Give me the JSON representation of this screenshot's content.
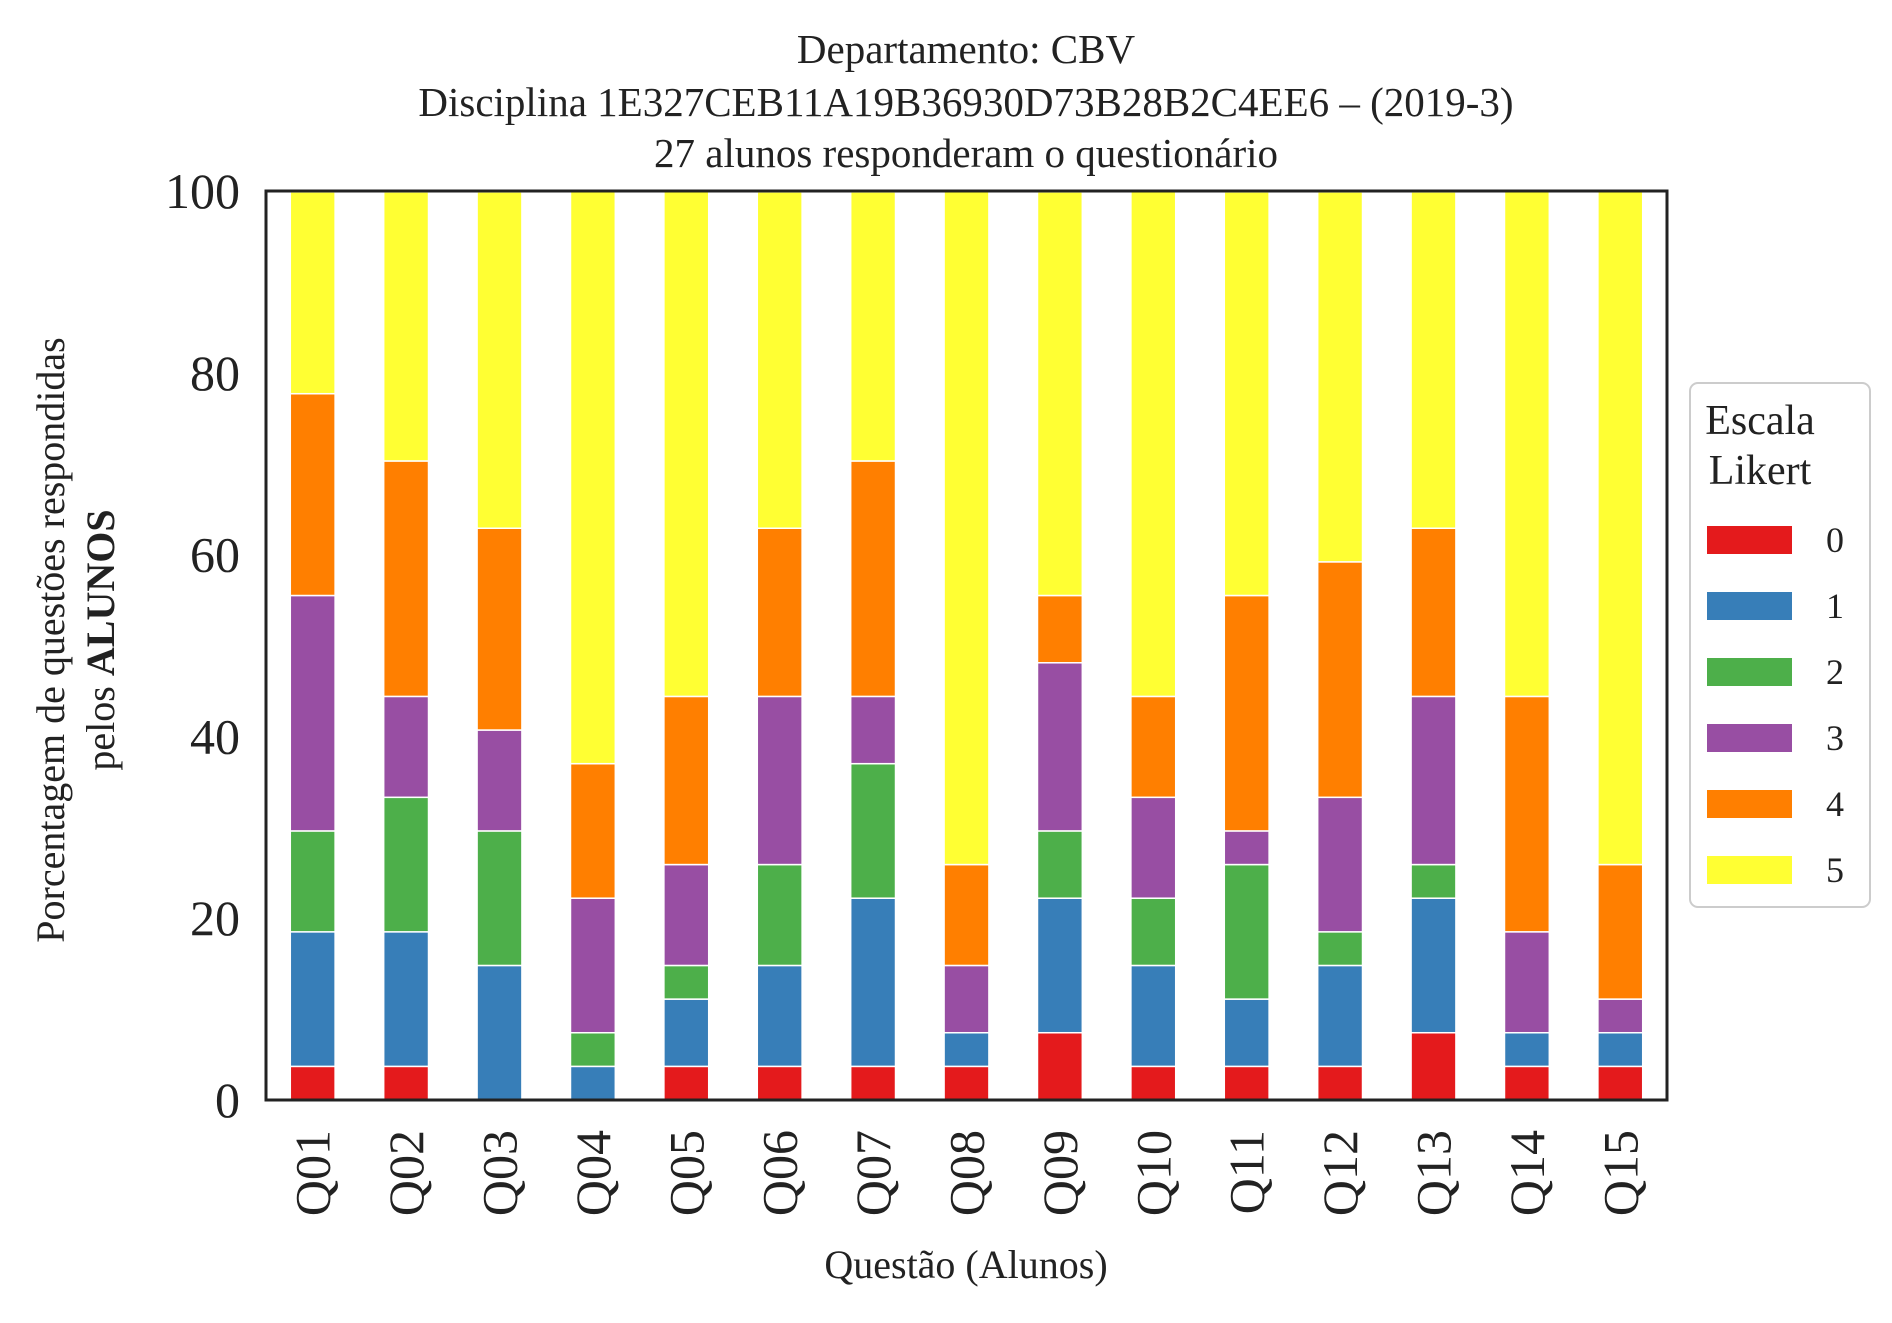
{
  "chart_data": {
    "type": "bar",
    "stacked": true,
    "title": [
      "Departamento: CBV",
      "Disciplina 1E327CEB11A19B36930D73B28B2C4EE6 – (2019-3)",
      "27 alunos responderam o questionário"
    ],
    "xlabel": "Questão (Alunos)",
    "ylabel": [
      "Porcentagem de questões respondidas",
      "pelos ",
      "ALUNOS"
    ],
    "ylim": [
      0,
      100
    ],
    "yticks": [
      0,
      20,
      40,
      60,
      80,
      100
    ],
    "categories": [
      "Q01",
      "Q02",
      "Q03",
      "Q04",
      "Q05",
      "Q06",
      "Q07",
      "Q08",
      "Q09",
      "Q10",
      "Q11",
      "Q12",
      "Q13",
      "Q14",
      "Q15"
    ],
    "legend": {
      "title": [
        "Escala",
        "Likert"
      ],
      "placement": "right-outside"
    },
    "grid": false,
    "series": [
      {
        "name": "0",
        "color": "#e41a1c",
        "values": [
          3.7,
          3.7,
          0,
          0,
          3.7,
          3.7,
          3.7,
          3.7,
          7.4,
          3.7,
          3.7,
          3.7,
          7.4,
          3.7,
          3.7
        ]
      },
      {
        "name": "1",
        "color": "#377eb8",
        "values": [
          14.8,
          14.8,
          14.8,
          3.7,
          7.4,
          11.1,
          18.5,
          3.7,
          14.8,
          11.1,
          7.4,
          11.1,
          14.8,
          3.7,
          3.7
        ]
      },
      {
        "name": "2",
        "color": "#4daf4a",
        "values": [
          11.1,
          14.8,
          14.8,
          3.7,
          3.7,
          11.1,
          14.8,
          0,
          7.4,
          7.4,
          14.8,
          3.7,
          3.7,
          0,
          0
        ]
      },
      {
        "name": "3",
        "color": "#984ea3",
        "values": [
          25.9,
          11.1,
          11.1,
          14.8,
          11.1,
          18.5,
          7.4,
          7.4,
          18.5,
          11.1,
          3.7,
          14.8,
          18.5,
          11.1,
          3.7
        ]
      },
      {
        "name": "4",
        "color": "#ff7f00",
        "values": [
          22.2,
          25.9,
          22.2,
          14.8,
          18.5,
          18.5,
          25.9,
          11.1,
          7.4,
          11.1,
          25.9,
          25.9,
          18.5,
          25.9,
          14.8
        ]
      },
      {
        "name": "5",
        "color": "#ffff33",
        "values": [
          22.2,
          29.6,
          37.0,
          63.0,
          55.6,
          37.0,
          29.6,
          74.1,
          44.4,
          55.6,
          44.4,
          40.7,
          37.0,
          55.6,
          74.1
        ]
      }
    ]
  }
}
